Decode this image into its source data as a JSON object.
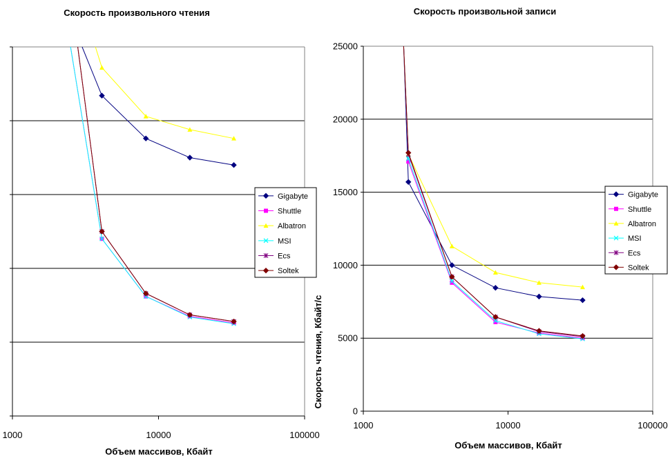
{
  "chart_data": [
    {
      "type": "line",
      "title": "Скорость произвольного чтения",
      "xlabel": "Объем массивов, Кбайт",
      "ylabel": "",
      "x_scale": "log",
      "xlim": [
        1000,
        100000
      ],
      "ylim": [
        0,
        25000
      ],
      "x_tick_labels": [
        "1000",
        "10000",
        "100000"
      ],
      "y_tick_labels": [],
      "y_grid": [
        5000,
        10000,
        15000,
        20000
      ],
      "grid": true,
      "legend_position": "right",
      "series": [
        {
          "name": "Gigabyte",
          "color": "#000080",
          "marker": "diamond",
          "x": [
            3000,
            4096,
            8192,
            16384,
            32768
          ],
          "y": [
            25000,
            21700,
            18800,
            17500,
            17000
          ]
        },
        {
          "name": "Shuttle",
          "color": "#ff00ff",
          "marker": "square",
          "x": [
            2500,
            4096,
            8192,
            16384,
            32768
          ],
          "y": [
            25000,
            12000,
            8100,
            6750,
            6300
          ]
        },
        {
          "name": "Albatron",
          "color": "#ffff00",
          "marker": "triangle",
          "x": [
            3700,
            4096,
            8192,
            16384,
            32768
          ],
          "y": [
            25000,
            23600,
            20300,
            19400,
            18800
          ]
        },
        {
          "name": "MSI",
          "color": "#00ffff",
          "marker": "x",
          "x": [
            2500,
            4096,
            8192,
            16384,
            32768
          ],
          "y": [
            25000,
            12000,
            8100,
            6700,
            6250
          ]
        },
        {
          "name": "Ecs",
          "color": "#800080",
          "marker": "star",
          "x": [
            2800,
            4096,
            8192,
            16384,
            32768
          ],
          "y": [
            25000,
            12500,
            8300,
            6850,
            6400
          ]
        },
        {
          "name": "Soltek",
          "color": "#800000",
          "marker": "diamond",
          "x": [
            2800,
            4096,
            8192,
            16384,
            32768
          ],
          "y": [
            25000,
            12500,
            8300,
            6850,
            6400
          ]
        }
      ]
    },
    {
      "type": "line",
      "title": "Скорость произвольной записи",
      "xlabel": "Объем массивов, Кбайт",
      "ylabel": "Скорость чтения, Кбайт/с",
      "x_scale": "log",
      "xlim": [
        1000,
        100000
      ],
      "ylim": [
        0,
        25000
      ],
      "x_tick_labels": [
        "1000",
        "10000",
        "100000"
      ],
      "y_tick_labels": [
        "0",
        "5000",
        "10000",
        "15000",
        "20000",
        "25000"
      ],
      "y_grid": [
        5000,
        10000,
        15000,
        20000
      ],
      "grid": true,
      "legend_position": "right",
      "series": [
        {
          "name": "Gigabyte",
          "color": "#000080",
          "marker": "diamond",
          "x": [
            1900,
            2048,
            4096,
            8192,
            16384,
            32768
          ],
          "y": [
            25000,
            15700,
            10000,
            8450,
            7850,
            7600
          ]
        },
        {
          "name": "Shuttle",
          "color": "#ff00ff",
          "marker": "square",
          "x": [
            1900,
            2048,
            4096,
            8192,
            16384,
            32768
          ],
          "y": [
            25000,
            17100,
            8800,
            6100,
            5350,
            5000
          ]
        },
        {
          "name": "Albatron",
          "color": "#ffff00",
          "marker": "triangle",
          "x": [
            1900,
            2048,
            4096,
            8192,
            16384,
            32768
          ],
          "y": [
            25000,
            17600,
            11300,
            9500,
            8800,
            8500
          ]
        },
        {
          "name": "MSI",
          "color": "#00ffff",
          "marker": "x",
          "x": [
            1900,
            2048,
            4096,
            8192,
            16384,
            32768
          ],
          "y": [
            25000,
            17300,
            8900,
            6200,
            5300,
            4950
          ]
        },
        {
          "name": "Ecs",
          "color": "#800080",
          "marker": "star",
          "x": [
            1900,
            2048,
            4096,
            8192,
            16384,
            32768
          ],
          "y": [
            25000,
            17600,
            9200,
            6450,
            5450,
            5100
          ]
        },
        {
          "name": "Soltek",
          "color": "#800000",
          "marker": "diamond",
          "x": [
            1900,
            2048,
            4096,
            8192,
            16384,
            32768
          ],
          "y": [
            25000,
            17700,
            9200,
            6450,
            5500,
            5150
          ]
        }
      ]
    }
  ]
}
